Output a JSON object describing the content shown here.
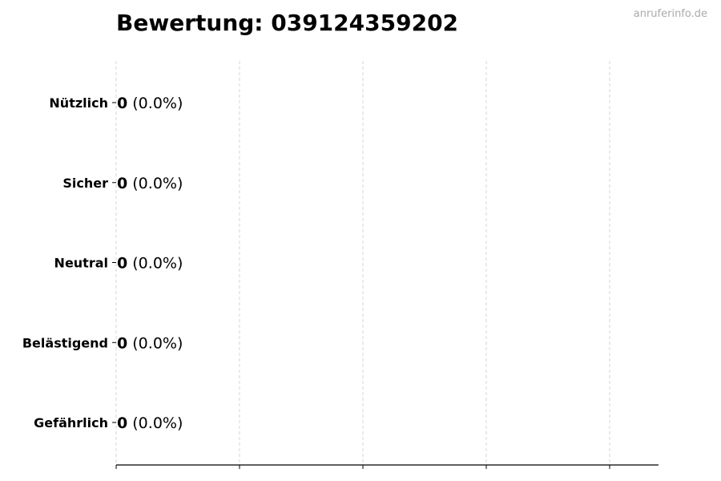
{
  "watermark": "anruferinfo.de",
  "chart_data": {
    "type": "bar",
    "orientation": "horizontal",
    "title": "Bewertung: 039124359202",
    "xlabel": "",
    "ylabel": "",
    "categories": [
      "Nützlich",
      "Sicher",
      "Neutral",
      "Belästigend",
      "Gefährlich"
    ],
    "values": [
      0,
      0,
      0,
      0,
      0
    ],
    "data_labels": [
      {
        "value": "0",
        "percent": "(0.0%)"
      },
      {
        "value": "0",
        "percent": "(0.0%)"
      },
      {
        "value": "0",
        "percent": "(0.0%)"
      },
      {
        "value": "0",
        "percent": "(0.0%)"
      },
      {
        "value": "0",
        "percent": "(0.0%)"
      }
    ],
    "x_tick_labels_shown": false,
    "x_tick_count": 5,
    "grid": "vertical dashed",
    "legend": "none",
    "colors": {
      "bar_edge": "#000000",
      "grid": "#cccccc"
    }
  }
}
